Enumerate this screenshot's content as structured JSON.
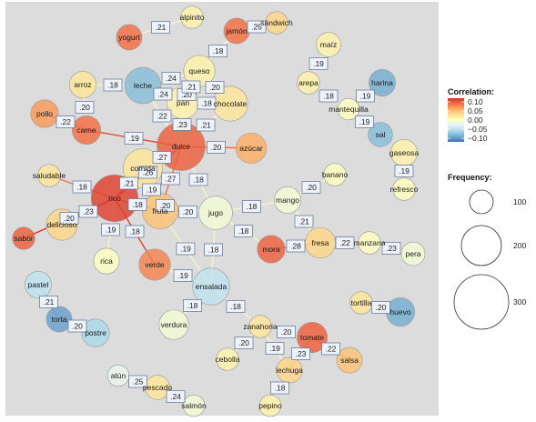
{
  "chart_data": {
    "type": "network",
    "color_legend": {
      "title": "Correlation:",
      "ticks": [
        "0.10",
        "0.05",
        "0.00",
        "−0.05",
        "−0.10"
      ],
      "tick_values": [
        0.1,
        0.05,
        0.0,
        -0.05,
        -0.1
      ],
      "scale_colors": [
        "#d7301f",
        "#f46d43",
        "#fdae61",
        "#fee090",
        "#ffffbf",
        "#e0f3f8",
        "#abd9e9",
        "#74add1",
        "#4575b4"
      ]
    },
    "size_legend": {
      "title": "Frequency:",
      "labels": [
        "100",
        "200",
        "300"
      ],
      "values": [
        100,
        200,
        300
      ]
    },
    "nodes": [
      {
        "id": "alpinito",
        "label": "alpinito",
        "frequency": 18,
        "correlation": 0.01
      },
      {
        "id": "yogurt",
        "label": "yogurt",
        "frequency": 30,
        "correlation": 0.08
      },
      {
        "id": "jamon",
        "label": "jamón",
        "frequency": 30,
        "correlation": 0.08
      },
      {
        "id": "sandwich",
        "label": "sándwich",
        "frequency": 18,
        "correlation": 0.03
      },
      {
        "id": "maiz",
        "label": "maíz",
        "frequency": 25,
        "correlation": 0.01
      },
      {
        "id": "leche",
        "label": "leche",
        "frequency": 95,
        "correlation": -0.07
      },
      {
        "id": "queso",
        "label": "queso",
        "frequency": 60,
        "correlation": 0.01
      },
      {
        "id": "arroz",
        "label": "arroz",
        "frequency": 35,
        "correlation": 0.02
      },
      {
        "id": "arepa",
        "label": "arepa",
        "frequency": 18,
        "correlation": 0.01
      },
      {
        "id": "harina",
        "label": "harina",
        "frequency": 35,
        "correlation": -0.08
      },
      {
        "id": "pan",
        "label": "pan",
        "frequency": 65,
        "correlation": 0.01
      },
      {
        "id": "chocolate",
        "label": "chocolate",
        "frequency": 85,
        "correlation": 0.02
      },
      {
        "id": "mantequilla",
        "label": "mantequilla",
        "frequency": 15,
        "correlation": 0.0
      },
      {
        "id": "pollo",
        "label": "pollo",
        "frequency": 40,
        "correlation": 0.06
      },
      {
        "id": "carne",
        "label": "carne",
        "frequency": 45,
        "correlation": 0.08
      },
      {
        "id": "sal",
        "label": "sal",
        "frequency": 25,
        "correlation": -0.07
      },
      {
        "id": "dulce",
        "label": "dulce",
        "frequency": 210,
        "correlation": 0.09
      },
      {
        "id": "azucar",
        "label": "azúcar",
        "frequency": 55,
        "correlation": 0.05
      },
      {
        "id": "gaseosa",
        "label": "gaseosa",
        "frequency": 35,
        "correlation": 0.01
      },
      {
        "id": "saludable",
        "label": "saludable",
        "frequency": 18,
        "correlation": 0.02
      },
      {
        "id": "comida",
        "label": "comida",
        "frequency": 120,
        "correlation": 0.02
      },
      {
        "id": "banano",
        "label": "banano",
        "frequency": 18,
        "correlation": 0.0
      },
      {
        "id": "refresco",
        "label": "refresco",
        "frequency": 18,
        "correlation": 0.0
      },
      {
        "id": "rico",
        "label": "rico",
        "frequency": 195,
        "correlation": 0.11
      },
      {
        "id": "fruta",
        "label": "fruta",
        "frequency": 90,
        "correlation": 0.04
      },
      {
        "id": "jugo",
        "label": "jugo",
        "frequency": 75,
        "correlation": -0.01
      },
      {
        "id": "mango",
        "label": "mango",
        "frequency": 35,
        "correlation": -0.01
      },
      {
        "id": "delicioso",
        "label": "delicioso",
        "frequency": 60,
        "correlation": 0.03
      },
      {
        "id": "sabor",
        "label": "sabor",
        "frequency": 18,
        "correlation": 0.09
      },
      {
        "id": "mora",
        "label": "mora",
        "frequency": 40,
        "correlation": 0.09
      },
      {
        "id": "fresa",
        "label": "fresa",
        "frequency": 55,
        "correlation": 0.03
      },
      {
        "id": "manzana",
        "label": "manzana",
        "frequency": 18,
        "correlation": 0.0
      },
      {
        "id": "pera",
        "label": "pera",
        "frequency": 22,
        "correlation": -0.01
      },
      {
        "id": "rica",
        "label": "rica",
        "frequency": 30,
        "correlation": 0.0
      },
      {
        "id": "verde",
        "label": "verde",
        "frequency": 60,
        "correlation": 0.07
      },
      {
        "id": "pastel",
        "label": "pastel",
        "frequency": 35,
        "correlation": -0.04
      },
      {
        "id": "ensalada",
        "label": "ensalada",
        "frequency": 100,
        "correlation": -0.04
      },
      {
        "id": "tortilla",
        "label": "tortilla",
        "frequency": 18,
        "correlation": 0.02
      },
      {
        "id": "huevo",
        "label": "huevo",
        "frequency": 45,
        "correlation": -0.08
      },
      {
        "id": "torta",
        "label": "torta",
        "frequency": 30,
        "correlation": -0.09
      },
      {
        "id": "postre",
        "label": "postre",
        "frequency": 40,
        "correlation": -0.05
      },
      {
        "id": "verdura",
        "label": "verdura",
        "frequency": 50,
        "correlation": -0.01
      },
      {
        "id": "zanahoria",
        "label": "zanahoria",
        "frequency": 18,
        "correlation": 0.02
      },
      {
        "id": "tomate",
        "label": "tomate",
        "frequency": 55,
        "correlation": 0.09
      },
      {
        "id": "cebolla",
        "label": "cebolla",
        "frequency": 18,
        "correlation": 0.01
      },
      {
        "id": "salsa",
        "label": "salsa",
        "frequency": 30,
        "correlation": 0.04
      },
      {
        "id": "lechuga",
        "label": "lechuga",
        "frequency": 30,
        "correlation": 0.03
      },
      {
        "id": "atun",
        "label": "atún",
        "frequency": 15,
        "correlation": -0.02
      },
      {
        "id": "pescado",
        "label": "pescado",
        "frequency": 25,
        "correlation": 0.02
      },
      {
        "id": "salmon",
        "label": "salmón",
        "frequency": 15,
        "correlation": -0.01
      },
      {
        "id": "pepino",
        "label": "pepino",
        "frequency": 15,
        "correlation": 0.01
      }
    ],
    "edges": [
      {
        "source": "alpinito",
        "target": "yogurt",
        "label": ".21"
      },
      {
        "source": "jamon",
        "target": "sandwich",
        "label": ".25"
      },
      {
        "source": "jamon",
        "target": "queso",
        "label": ".18"
      },
      {
        "source": "maiz",
        "target": "arepa",
        "label": ".19"
      },
      {
        "source": "leche",
        "target": "arroz",
        "label": ".18"
      },
      {
        "source": "leche",
        "target": "queso",
        "label": ".24"
      },
      {
        "source": "leche",
        "target": "pan",
        "label": ".24"
      },
      {
        "source": "leche",
        "target": "chocolate",
        "label": ".20"
      },
      {
        "source": "leche",
        "target": "dulce",
        "label": ".22"
      },
      {
        "source": "queso",
        "target": "pan",
        "label": ".21"
      },
      {
        "source": "pan",
        "target": "chocolate",
        "label": ".18"
      },
      {
        "source": "pan",
        "target": "dulce",
        "label": ".23"
      },
      {
        "source": "chocolate",
        "target": "dulce",
        "label": ".21"
      },
      {
        "source": "chocolate",
        "target": "queso",
        "label": ".20"
      },
      {
        "source": "arepa",
        "target": "mantequilla",
        "label": ".18"
      },
      {
        "source": "harina",
        "target": "mantequilla",
        "label": ".19"
      },
      {
        "source": "sal",
        "target": "mantequilla",
        "label": ".19"
      },
      {
        "source": "pollo",
        "target": "carne",
        "label": ".22"
      },
      {
        "source": "arroz",
        "target": "carne",
        "label": ".20"
      },
      {
        "source": "carne",
        "target": "dulce",
        "label": ".19"
      },
      {
        "source": "dulce",
        "target": "azucar",
        "label": ".20"
      },
      {
        "source": "dulce",
        "target": "comida",
        "label": ".27"
      },
      {
        "source": "dulce",
        "target": "rico",
        "label": ".26"
      },
      {
        "source": "dulce",
        "target": "fruta",
        "label": ".27"
      },
      {
        "source": "dulce",
        "target": "jugo",
        "label": ".18"
      },
      {
        "source": "gaseosa",
        "target": "refresco",
        "label": ".19"
      },
      {
        "source": "saludable",
        "target": "rico",
        "label": ".18"
      },
      {
        "source": "comida",
        "target": "rico",
        "label": ".21"
      },
      {
        "source": "comida",
        "target": "fruta",
        "label": ".19"
      },
      {
        "source": "rico",
        "target": "delicioso",
        "label": ".23"
      },
      {
        "source": "rico",
        "target": "fruta",
        "label": ".18"
      },
      {
        "source": "rico",
        "target": "jugo",
        "label": ".20"
      },
      {
        "source": "rico",
        "target": "sabor",
        "label": ".20"
      },
      {
        "source": "rico",
        "target": "rica",
        "label": ".19"
      },
      {
        "source": "rico",
        "target": "verde",
        "label": ".18"
      },
      {
        "source": "fruta",
        "target": "jugo",
        "label": ".20"
      },
      {
        "source": "fruta",
        "target": "ensalada",
        "label": ".19"
      },
      {
        "source": "jugo",
        "target": "mango",
        "label": ".18"
      },
      {
        "source": "jugo",
        "target": "mora",
        "label": ".18"
      },
      {
        "source": "jugo",
        "target": "ensalada",
        "label": ".18"
      },
      {
        "source": "banano",
        "target": "mango",
        "label": ".20"
      },
      {
        "source": "mango",
        "target": "fresa",
        "label": ".21"
      },
      {
        "source": "mora",
        "target": "fresa",
        "label": ".28"
      },
      {
        "source": "fresa",
        "target": "manzana",
        "label": ".22"
      },
      {
        "source": "manzana",
        "target": "pera",
        "label": ".23"
      },
      {
        "source": "verde",
        "target": "ensalada",
        "label": ".19"
      },
      {
        "source": "pastel",
        "target": "torta",
        "label": ".21"
      },
      {
        "source": "torta",
        "target": "postre",
        "label": ".20"
      },
      {
        "source": "tortilla",
        "target": "huevo",
        "label": ".20"
      },
      {
        "source": "ensalada",
        "target": "verdura",
        "label": ".18"
      },
      {
        "source": "ensalada",
        "target": "zanahoria",
        "label": ".18"
      },
      {
        "source": "zanahoria",
        "target": "tomate",
        "label": ".20"
      },
      {
        "source": "zanahoria",
        "target": "lechuga",
        "label": ".19"
      },
      {
        "source": "tomate",
        "target": "lechuga",
        "label": ".23"
      },
      {
        "source": "tomate",
        "target": "salsa",
        "label": ".22"
      },
      {
        "source": "cebolla",
        "target": "zanahoria",
        "label": ".20"
      },
      {
        "source": "lechuga",
        "target": "pepino",
        "label": ".18"
      },
      {
        "source": "atun",
        "target": "pescado",
        "label": ".25"
      },
      {
        "source": "pescado",
        "target": "salmon",
        "label": ".24"
      }
    ]
  }
}
